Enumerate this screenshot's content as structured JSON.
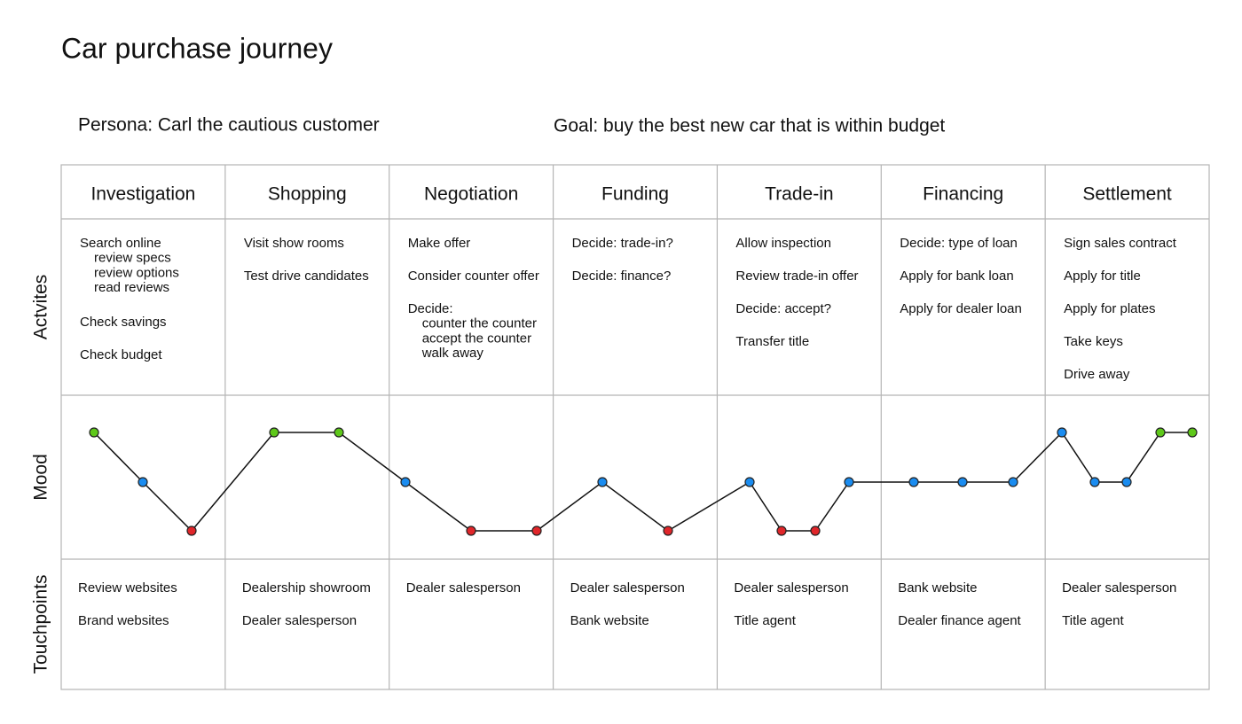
{
  "title": "Car purchase journey",
  "persona": "Persona: Carl the cautious customer",
  "goal": "Goal: buy the best new car that is within budget",
  "row_labels": [
    "Actvites",
    "Mood",
    "Touchpoints"
  ],
  "stages": [
    {
      "name": "Investigation",
      "activities": [
        {
          "text": "Search online",
          "sub": [
            "review specs",
            "review options",
            "read reviews"
          ]
        },
        "Check savings",
        "Check budget"
      ],
      "touchpoints": [
        "Review websites",
        "Brand websites"
      ]
    },
    {
      "name": "Shopping",
      "activities": [
        "Visit show rooms",
        "Test drive candidates"
      ],
      "touchpoints": [
        "Dealership showroom",
        "Dealer salesperson"
      ]
    },
    {
      "name": "Negotiation",
      "activities": [
        "Make offer",
        "Consider counter  offer",
        {
          "text": "Decide:",
          "sub": [
            "counter the counter",
            "accept the counter",
            "walk away"
          ]
        }
      ],
      "touchpoints": [
        "Dealer salesperson"
      ]
    },
    {
      "name": "Funding",
      "activities": [
        "Decide: trade-in?",
        "Decide: finance?"
      ],
      "touchpoints": [
        "Dealer salesperson",
        "Bank website"
      ]
    },
    {
      "name": "Trade-in",
      "activities": [
        "Allow inspection",
        "Review trade-in offer",
        "Decide: accept?",
        "Transfer title"
      ],
      "touchpoints": [
        "Dealer salesperson",
        "Title agent"
      ]
    },
    {
      "name": "Financing",
      "activities": [
        "Decide: type of loan",
        "Apply for bank loan",
        "Apply for dealer loan"
      ],
      "touchpoints": [
        "Bank website",
        "Dealer finance agent"
      ]
    },
    {
      "name": "Settlement",
      "activities": [
        "Sign sales contract",
        "Apply for title",
        "Apply for plates",
        "Take keys",
        "Drive away"
      ],
      "touchpoints": [
        "Dealer salesperson",
        "Title agent"
      ]
    }
  ]
}
